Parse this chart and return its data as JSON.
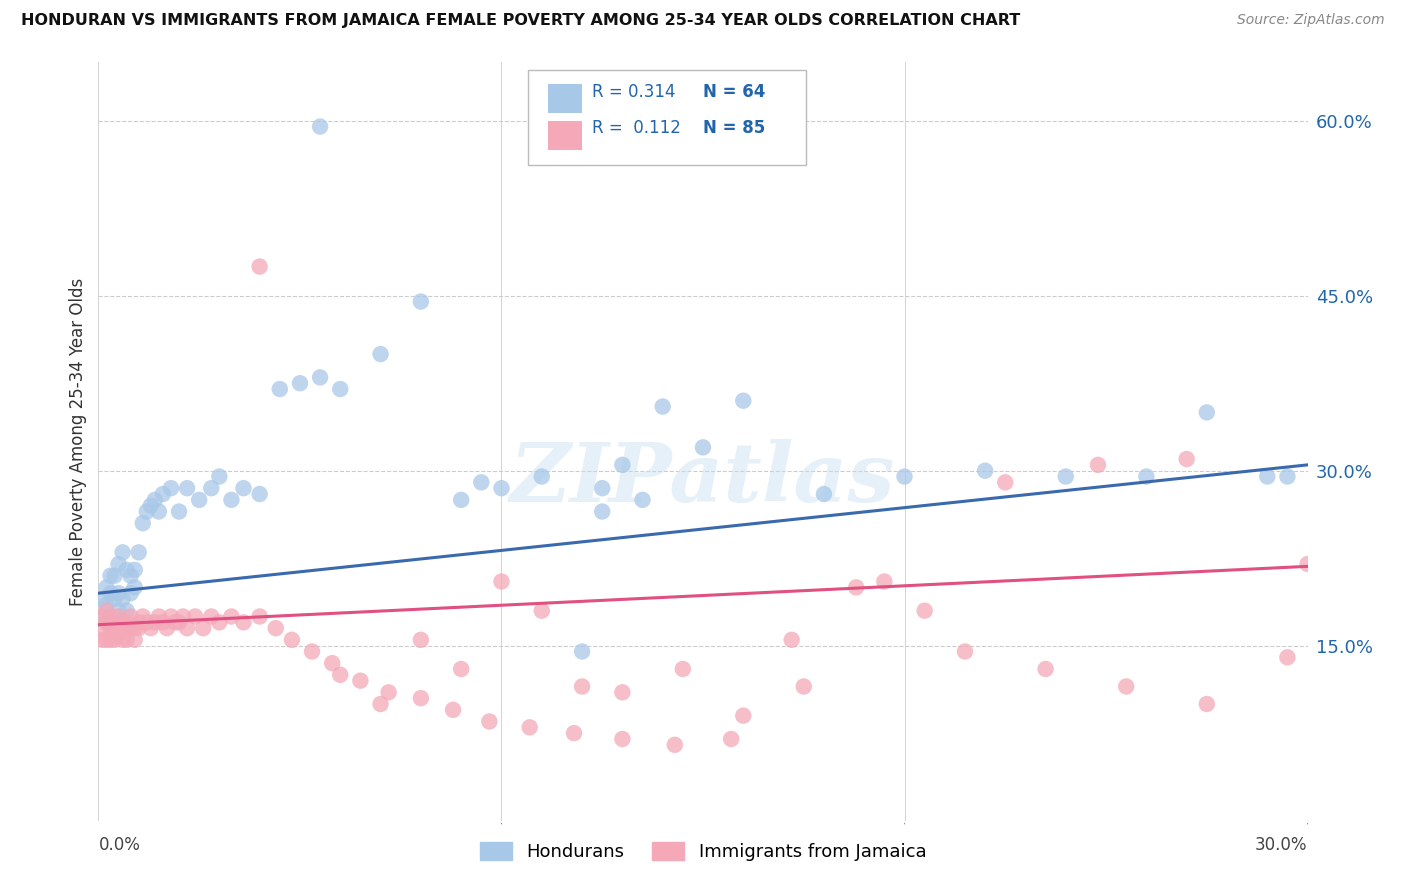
{
  "title": "HONDURAN VS IMMIGRANTS FROM JAMAICA FEMALE POVERTY AMONG 25-34 YEAR OLDS CORRELATION CHART",
  "source": "Source: ZipAtlas.com",
  "ylabel": "Female Poverty Among 25-34 Year Olds",
  "xlim": [
    0.0,
    0.3
  ],
  "ylim": [
    0.0,
    0.65
  ],
  "color_blue": "#a8c8e8",
  "color_pink": "#f4a8b8",
  "line_blue": "#3a6aad",
  "line_pink": "#e05080",
  "text_color_blue": "#2166ac",
  "background_color": "#ffffff",
  "grid_color": "#cccccc",
  "watermark": "ZIPatlas",
  "blue_line_start_y": 0.195,
  "blue_line_end_y": 0.305,
  "pink_line_start_y": 0.168,
  "pink_line_end_y": 0.218,
  "hondurans_x": [
    0.001,
    0.001,
    0.002,
    0.002,
    0.002,
    0.003,
    0.003,
    0.003,
    0.004,
    0.004,
    0.005,
    0.005,
    0.005,
    0.006,
    0.006,
    0.007,
    0.007,
    0.008,
    0.008,
    0.009,
    0.009,
    0.01,
    0.011,
    0.012,
    0.013,
    0.014,
    0.015,
    0.016,
    0.018,
    0.02,
    0.022,
    0.025,
    0.028,
    0.03,
    0.033,
    0.036,
    0.04,
    0.045,
    0.05,
    0.055,
    0.06,
    0.07,
    0.08,
    0.095,
    0.11,
    0.125,
    0.14,
    0.16,
    0.18,
    0.2,
    0.22,
    0.24,
    0.26,
    0.275,
    0.29,
    0.295,
    0.055,
    0.12,
    0.13,
    0.15,
    0.135,
    0.125,
    0.1,
    0.09
  ],
  "hondurans_y": [
    0.175,
    0.19,
    0.2,
    0.185,
    0.17,
    0.21,
    0.195,
    0.175,
    0.21,
    0.19,
    0.22,
    0.195,
    0.18,
    0.23,
    0.19,
    0.215,
    0.18,
    0.21,
    0.195,
    0.215,
    0.2,
    0.23,
    0.255,
    0.265,
    0.27,
    0.275,
    0.265,
    0.28,
    0.285,
    0.265,
    0.285,
    0.275,
    0.285,
    0.295,
    0.275,
    0.285,
    0.28,
    0.37,
    0.375,
    0.38,
    0.37,
    0.4,
    0.445,
    0.29,
    0.295,
    0.285,
    0.355,
    0.36,
    0.28,
    0.295,
    0.3,
    0.295,
    0.295,
    0.35,
    0.295,
    0.295,
    0.595,
    0.145,
    0.305,
    0.32,
    0.275,
    0.265,
    0.285,
    0.275
  ],
  "jamaica_x": [
    0.001,
    0.001,
    0.001,
    0.002,
    0.002,
    0.002,
    0.003,
    0.003,
    0.003,
    0.004,
    0.004,
    0.004,
    0.005,
    0.005,
    0.005,
    0.006,
    0.006,
    0.006,
    0.007,
    0.007,
    0.007,
    0.008,
    0.008,
    0.009,
    0.009,
    0.01,
    0.01,
    0.011,
    0.012,
    0.013,
    0.014,
    0.015,
    0.016,
    0.017,
    0.018,
    0.019,
    0.02,
    0.021,
    0.022,
    0.024,
    0.026,
    0.028,
    0.03,
    0.033,
    0.036,
    0.04,
    0.044,
    0.048,
    0.053,
    0.058,
    0.065,
    0.072,
    0.08,
    0.088,
    0.097,
    0.107,
    0.118,
    0.13,
    0.143,
    0.157,
    0.172,
    0.188,
    0.205,
    0.225,
    0.248,
    0.27,
    0.04,
    0.06,
    0.07,
    0.08,
    0.09,
    0.1,
    0.11,
    0.12,
    0.13,
    0.145,
    0.16,
    0.175,
    0.195,
    0.215,
    0.235,
    0.255,
    0.275,
    0.295,
    0.3
  ],
  "jamaica_y": [
    0.165,
    0.175,
    0.155,
    0.17,
    0.18,
    0.155,
    0.165,
    0.175,
    0.155,
    0.16,
    0.17,
    0.155,
    0.165,
    0.175,
    0.16,
    0.165,
    0.155,
    0.17,
    0.165,
    0.155,
    0.17,
    0.165,
    0.175,
    0.165,
    0.155,
    0.17,
    0.165,
    0.175,
    0.17,
    0.165,
    0.17,
    0.175,
    0.17,
    0.165,
    0.175,
    0.17,
    0.17,
    0.175,
    0.165,
    0.175,
    0.165,
    0.175,
    0.17,
    0.175,
    0.17,
    0.175,
    0.165,
    0.155,
    0.145,
    0.135,
    0.12,
    0.11,
    0.105,
    0.095,
    0.085,
    0.08,
    0.075,
    0.07,
    0.065,
    0.07,
    0.155,
    0.2,
    0.18,
    0.29,
    0.305,
    0.31,
    0.475,
    0.125,
    0.1,
    0.155,
    0.13,
    0.205,
    0.18,
    0.115,
    0.11,
    0.13,
    0.09,
    0.115,
    0.205,
    0.145,
    0.13,
    0.115,
    0.1,
    0.14,
    0.22
  ]
}
